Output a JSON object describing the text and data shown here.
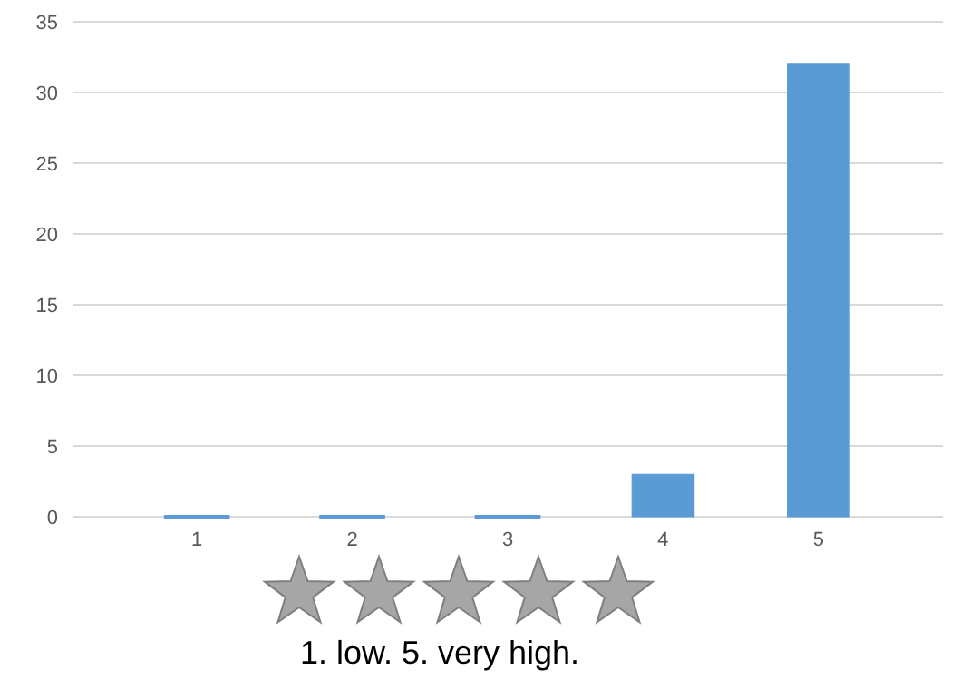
{
  "chart_data": {
    "type": "bar",
    "categories": [
      "1",
      "2",
      "3",
      "4",
      "5"
    ],
    "values": [
      0,
      0,
      0,
      3,
      32
    ],
    "color": "#5b9bd5",
    "ylim": [
      0,
      35
    ],
    "yticks": [
      0,
      5,
      10,
      15,
      20,
      25,
      30,
      35
    ],
    "grid": "y",
    "xlabel": "1. low. 5. very high."
  }
}
